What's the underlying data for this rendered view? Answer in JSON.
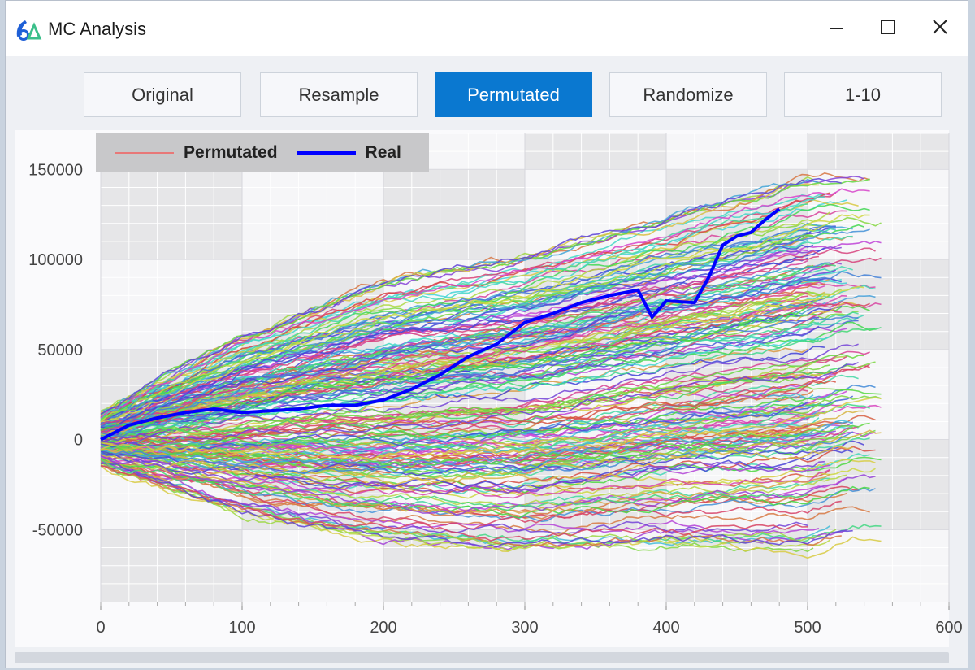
{
  "window": {
    "title": "MC Analysis",
    "app_icon": "mc-app-icon"
  },
  "window_controls": {
    "minimize": "minimize-icon",
    "maximize": "maximize-icon",
    "close": "close-icon"
  },
  "tabs": [
    {
      "label": "Original",
      "active": false
    },
    {
      "label": "Resample",
      "active": false
    },
    {
      "label": "Permutated",
      "active": true
    },
    {
      "label": "Randomize",
      "active": false
    },
    {
      "label": "1-10",
      "active": false
    }
  ],
  "colors": {
    "accent": "#0a78d0",
    "real_series": "#0000ff",
    "permutated_legend": "#e87878"
  },
  "chart_data": {
    "type": "line",
    "title": "",
    "xlabel": "",
    "ylabel": "",
    "xlim": [
      0,
      600
    ],
    "ylim": [
      -90000,
      170000
    ],
    "x_ticks": [
      "0",
      "100",
      "200",
      "300",
      "400",
      "500",
      "600"
    ],
    "y_ticks": [
      "150000",
      "100000",
      "50000",
      "0",
      "-50000"
    ],
    "grid": true,
    "legend": {
      "position": "top-left",
      "entries": [
        "Permutated",
        "Real"
      ]
    },
    "permutated_series_count": 200,
    "series": [
      {
        "name": "Real",
        "color": "#0000ff",
        "x": [
          0,
          20,
          40,
          60,
          80,
          100,
          120,
          140,
          160,
          180,
          200,
          220,
          240,
          260,
          280,
          300,
          320,
          340,
          360,
          380,
          390,
          400,
          420,
          430,
          440,
          450,
          460,
          470,
          480
        ],
        "y": [
          0,
          8000,
          12000,
          15000,
          17000,
          15000,
          16000,
          17000,
          19000,
          19000,
          22000,
          28000,
          36000,
          46000,
          53000,
          65000,
          70000,
          76000,
          80000,
          83000,
          68000,
          77000,
          76000,
          90000,
          108000,
          113000,
          115000,
          122000,
          128000
        ]
      },
      {
        "name": "Permutated",
        "note_style": "200 simulated paths, multicolored",
        "x": [
          0,
          100,
          200,
          300,
          400,
          500,
          530
        ],
        "y_upper_envelope": [
          15000,
          58000,
          88000,
          103000,
          125000,
          147000,
          150000
        ],
        "y_lower_envelope": [
          -15000,
          -42000,
          -58000,
          -63000,
          -60000,
          -62000,
          -55000
        ]
      }
    ]
  }
}
